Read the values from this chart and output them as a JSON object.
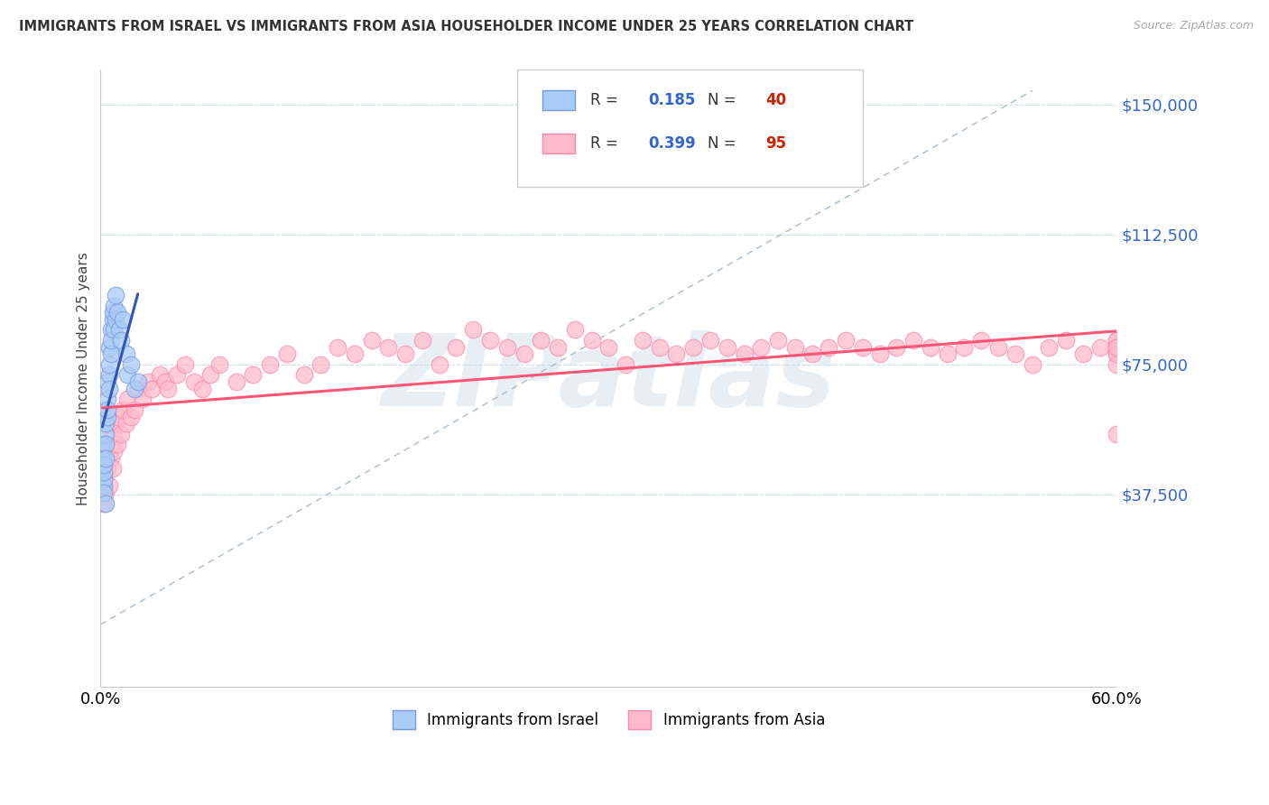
{
  "title": "IMMIGRANTS FROM ISRAEL VS IMMIGRANTS FROM ASIA HOUSEHOLDER INCOME UNDER 25 YEARS CORRELATION CHART",
  "source": "Source: ZipAtlas.com",
  "ylabel": "Householder Income Under 25 years",
  "xlim": [
    0.0,
    0.6
  ],
  "ylim": [
    -18000,
    160000
  ],
  "yticks": [
    37500,
    75000,
    112500,
    150000
  ],
  "ytick_labels": [
    "$37,500",
    "$75,000",
    "$112,500",
    "$150,000"
  ],
  "xticks": [
    0.0,
    0.6
  ],
  "xtick_labels": [
    "0.0%",
    "60.0%"
  ],
  "watermark": "ZIPatlas",
  "legend_R1": "0.185",
  "legend_N1": "40",
  "legend_R2": "0.399",
  "legend_N2": "95",
  "israel_color": "#aaccf8",
  "israel_edge": "#7799dd",
  "asia_color": "#ffbbcc",
  "asia_edge": "#ff88aa",
  "israel_trend_color": "#3355bb",
  "asia_trend_color": "#ff5577",
  "diag_color": "#aabbcc",
  "R_color": "#3366cc",
  "N_color": "#cc2200",
  "israel_x": [
    0.001,
    0.001,
    0.001,
    0.001,
    0.002,
    0.002,
    0.002,
    0.002,
    0.002,
    0.003,
    0.003,
    0.003,
    0.003,
    0.003,
    0.004,
    0.004,
    0.004,
    0.004,
    0.005,
    0.005,
    0.005,
    0.005,
    0.006,
    0.006,
    0.006,
    0.007,
    0.007,
    0.008,
    0.008,
    0.009,
    0.009,
    0.01,
    0.011,
    0.012,
    0.013,
    0.015,
    0.016,
    0.018,
    0.02,
    0.022
  ],
  "israel_y": [
    45000,
    50000,
    48000,
    52000,
    40000,
    42000,
    38000,
    44000,
    46000,
    35000,
    55000,
    58000,
    52000,
    48000,
    60000,
    65000,
    70000,
    62000,
    72000,
    68000,
    75000,
    80000,
    85000,
    78000,
    82000,
    88000,
    90000,
    85000,
    92000,
    95000,
    88000,
    90000,
    85000,
    82000,
    88000,
    78000,
    72000,
    75000,
    68000,
    70000
  ],
  "asia_x": [
    0.001,
    0.002,
    0.002,
    0.003,
    0.004,
    0.004,
    0.005,
    0.006,
    0.006,
    0.007,
    0.007,
    0.008,
    0.009,
    0.01,
    0.01,
    0.012,
    0.013,
    0.015,
    0.016,
    0.018,
    0.02,
    0.022,
    0.025,
    0.028,
    0.03,
    0.035,
    0.038,
    0.04,
    0.045,
    0.05,
    0.055,
    0.06,
    0.065,
    0.07,
    0.08,
    0.09,
    0.1,
    0.11,
    0.12,
    0.13,
    0.14,
    0.15,
    0.16,
    0.17,
    0.18,
    0.19,
    0.2,
    0.21,
    0.22,
    0.23,
    0.24,
    0.25,
    0.26,
    0.27,
    0.28,
    0.29,
    0.3,
    0.31,
    0.32,
    0.33,
    0.34,
    0.35,
    0.36,
    0.37,
    0.38,
    0.39,
    0.4,
    0.41,
    0.42,
    0.43,
    0.44,
    0.45,
    0.46,
    0.47,
    0.48,
    0.49,
    0.5,
    0.51,
    0.52,
    0.53,
    0.54,
    0.55,
    0.56,
    0.57,
    0.58,
    0.59,
    0.6,
    0.6,
    0.6,
    0.6,
    0.6,
    0.6,
    0.6,
    0.6,
    0.6
  ],
  "asia_y": [
    48000,
    42000,
    35000,
    38000,
    45000,
    50000,
    40000,
    48000,
    52000,
    45000,
    55000,
    50000,
    58000,
    52000,
    60000,
    55000,
    62000,
    58000,
    65000,
    60000,
    62000,
    68000,
    65000,
    70000,
    68000,
    72000,
    70000,
    68000,
    72000,
    75000,
    70000,
    68000,
    72000,
    75000,
    70000,
    72000,
    75000,
    78000,
    72000,
    75000,
    80000,
    78000,
    82000,
    80000,
    78000,
    82000,
    75000,
    80000,
    85000,
    82000,
    80000,
    78000,
    82000,
    80000,
    85000,
    82000,
    80000,
    75000,
    82000,
    80000,
    78000,
    80000,
    82000,
    80000,
    78000,
    80000,
    82000,
    80000,
    78000,
    80000,
    82000,
    80000,
    78000,
    80000,
    82000,
    80000,
    78000,
    80000,
    82000,
    80000,
    78000,
    75000,
    80000,
    82000,
    78000,
    80000,
    82000,
    80000,
    78000,
    75000,
    80000,
    82000,
    78000,
    80000,
    55000
  ]
}
